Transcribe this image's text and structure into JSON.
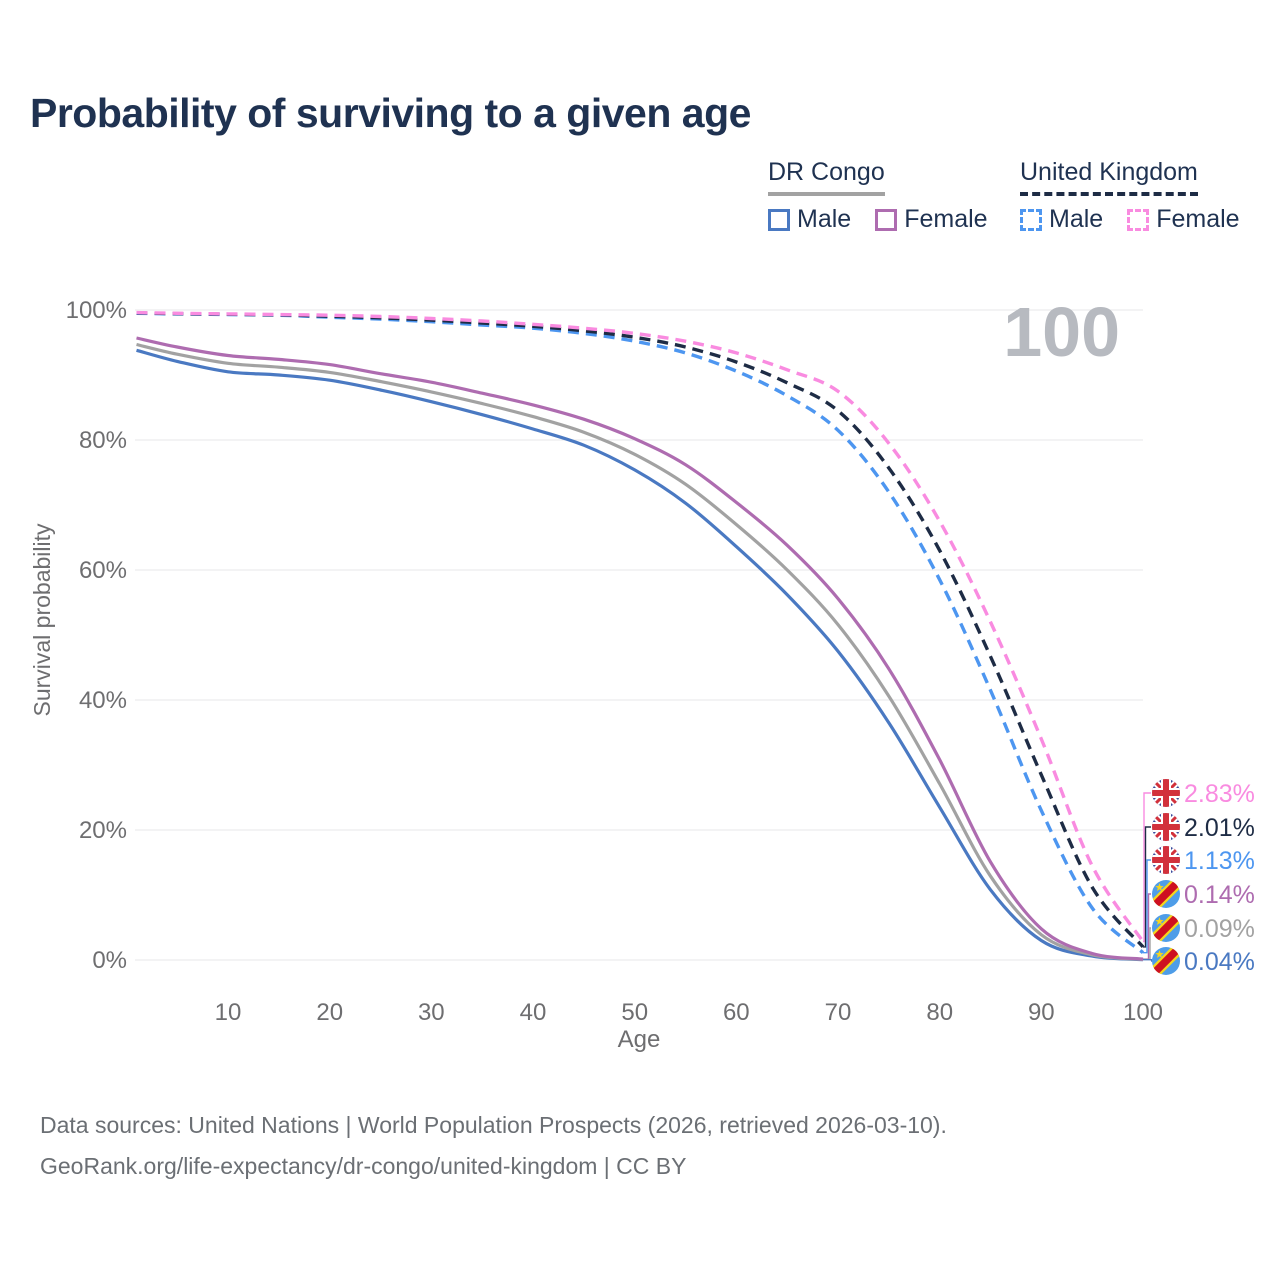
{
  "title": "Probability of surviving to a given age",
  "watermark": "100",
  "legend": {
    "groups": [
      {
        "label": "DR Congo",
        "underline_style": "solid",
        "underline_color": "#A2A2A2",
        "items": [
          {
            "label": "Male",
            "color": "#4A79C2",
            "dashed": false
          },
          {
            "label": "Female",
            "color": "#AE6CB0",
            "dashed": false
          }
        ]
      },
      {
        "label": "United Kingdom",
        "underline_style": "dashed",
        "underline_color": "#1E2C45",
        "items": [
          {
            "label": "Male",
            "color": "#4D96F0",
            "dashed": true
          },
          {
            "label": "Female",
            "color": "#F98BE0",
            "dashed": true
          }
        ]
      }
    ]
  },
  "chart_data": {
    "type": "line",
    "title": "Probability of surviving to a given age",
    "xlabel": "Age",
    "ylabel": "Survival probability",
    "xlim": [
      1,
      100
    ],
    "ylim": [
      0,
      100
    ],
    "grid": "horizontal",
    "legend_position": "top-right",
    "x_ticks": [
      10,
      20,
      30,
      40,
      50,
      60,
      70,
      80,
      90,
      100
    ],
    "y_tick_values": [
      0,
      20,
      40,
      60,
      80,
      100
    ],
    "y_tick_labels": [
      "0%",
      "20%",
      "40%",
      "60%",
      "80%",
      "100%"
    ],
    "x": [
      1,
      5,
      10,
      15,
      20,
      25,
      30,
      35,
      40,
      45,
      50,
      55,
      60,
      65,
      70,
      75,
      80,
      85,
      90,
      95,
      100
    ],
    "series": [
      {
        "name": "DR Congo Male",
        "country": "DR Congo",
        "sex": "Male",
        "color": "#4A79C2",
        "dashed": false,
        "values": [
          93.8,
          92.1,
          90.5,
          90.0,
          89.2,
          87.7,
          85.9,
          83.9,
          81.7,
          79.2,
          75.4,
          70.3,
          63.6,
          56.2,
          47.5,
          36.5,
          23.5,
          10.8,
          3.0,
          0.6,
          0.04
        ],
        "end_label": "0.04%",
        "flag": "cd"
      },
      {
        "name": "DR Congo Combined",
        "country": "DR Congo",
        "sex": "Both",
        "color": "#A2A2A2",
        "dashed": false,
        "values": [
          94.7,
          93.2,
          91.8,
          91.2,
          90.4,
          89.0,
          87.4,
          85.6,
          83.6,
          81.2,
          77.8,
          73.2,
          67.0,
          60.0,
          51.6,
          40.6,
          27.1,
          12.9,
          3.9,
          0.8,
          0.09
        ],
        "end_label": "0.09%",
        "flag": "cd"
      },
      {
        "name": "DR Congo Female",
        "country": "DR Congo",
        "sex": "Female",
        "color": "#AE6CB0",
        "dashed": false,
        "values": [
          95.7,
          94.3,
          93.0,
          92.4,
          91.6,
          90.2,
          88.9,
          87.2,
          85.4,
          83.2,
          80.2,
          76.2,
          70.4,
          63.8,
          55.6,
          44.8,
          30.8,
          15.1,
          4.8,
          1.0,
          0.14
        ],
        "end_label": "0.14%",
        "flag": "cd"
      },
      {
        "name": "United Kingdom Male",
        "country": "United Kingdom",
        "sex": "Male",
        "color": "#4D96F0",
        "dashed": true,
        "values": [
          99.5,
          99.4,
          99.3,
          99.2,
          98.9,
          98.6,
          98.2,
          97.7,
          97.2,
          96.4,
          95.2,
          93.4,
          90.6,
          86.8,
          81.5,
          72.0,
          58.5,
          41.5,
          23.0,
          8.0,
          1.13
        ],
        "end_label": "1.13%",
        "flag": "uk"
      },
      {
        "name": "United Kingdom Combined",
        "country": "United Kingdom",
        "sex": "Both",
        "color": "#1E2C45",
        "dashed": true,
        "values": [
          99.55,
          99.45,
          99.35,
          99.25,
          99.05,
          98.8,
          98.45,
          98.0,
          97.5,
          96.8,
          95.8,
          94.3,
          92.0,
          88.8,
          84.5,
          75.7,
          63.0,
          46.7,
          28.5,
          11.2,
          2.01
        ],
        "end_label": "2.01%",
        "flag": "uk"
      },
      {
        "name": "United Kingdom Female",
        "country": "United Kingdom",
        "sex": "Female",
        "color": "#F98BE0",
        "dashed": true,
        "values": [
          99.6,
          99.5,
          99.4,
          99.3,
          99.2,
          99.0,
          98.7,
          98.3,
          97.8,
          97.2,
          96.4,
          95.2,
          93.4,
          90.8,
          87.5,
          79.5,
          67.5,
          52.0,
          34.0,
          14.5,
          2.83
        ],
        "end_label": "2.83%",
        "flag": "uk"
      }
    ],
    "end_label_order": [
      "United Kingdom Female",
      "United Kingdom Combined",
      "United Kingdom Male",
      "DR Congo Female",
      "DR Congo Combined",
      "DR Congo Male"
    ]
  },
  "footer": {
    "line1": "Data sources: United Nations | World Population Prospects (2026, retrieved 2026-03-10).",
    "line2": "GeoRank.org/life-expectancy/dr-congo/united-kingdom | CC BY"
  },
  "colors": {
    "title": "#1F3251",
    "axis_text": "#6E6E70",
    "gridline": "#E7E7E9",
    "watermark": "#B7BAC0",
    "footer_text": "#6B6F74",
    "uk_flag_blue": "#3A4B9C",
    "uk_flag_red": "#D2313C",
    "cd_flag_blue": "#4E9DE8",
    "cd_flag_red": "#CE1021",
    "cd_flag_yellow": "#F5D51C"
  }
}
